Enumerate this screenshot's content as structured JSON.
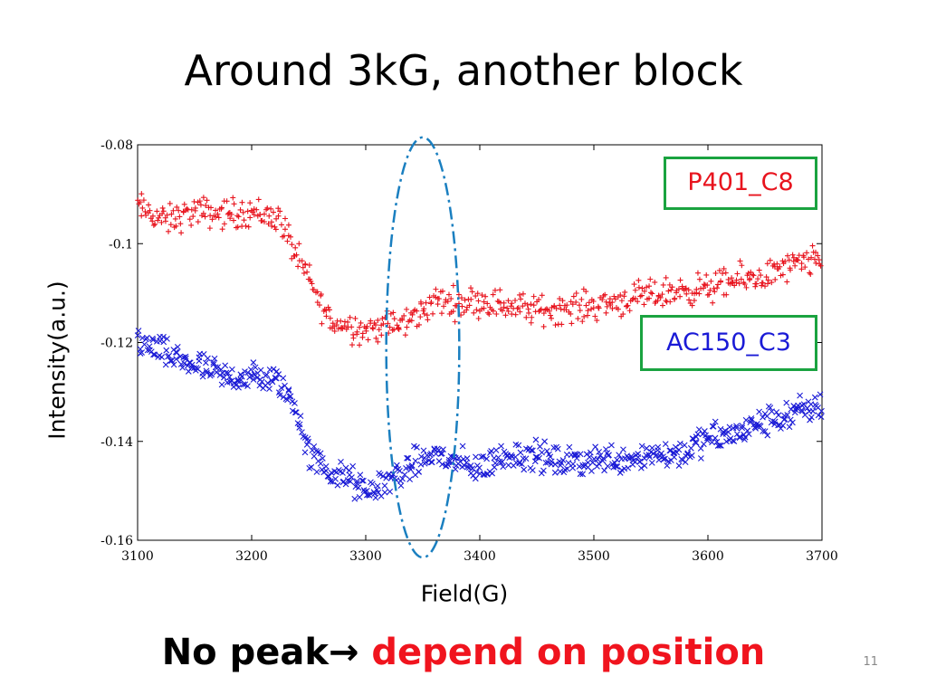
{
  "slide": {
    "title": "Around 3kG, another block",
    "footer_left": "No peak→",
    "footer_right": "depend on position",
    "page_number": "11"
  },
  "chart_data": {
    "type": "scatter",
    "xlabel": "Field(G)",
    "ylabel": "Intensity(a.u.)",
    "xlim": [
      3100,
      3700
    ],
    "ylim": [
      -0.16,
      -0.08
    ],
    "xticks": [
      "3100",
      "3200",
      "3300",
      "3400",
      "3500",
      "3600",
      "3700"
    ],
    "yticks": [
      "-0.08",
      "-0.1",
      "-0.12",
      "-0.14",
      "-0.16"
    ],
    "grid": false,
    "series": [
      {
        "name": "P401_C8",
        "marker": "+",
        "color": "#e8141e",
        "x": [
          3100,
          3125,
          3150,
          3175,
          3200,
          3225,
          3240,
          3250,
          3260,
          3270,
          3285,
          3300,
          3315,
          3330,
          3345,
          3360,
          3380,
          3400,
          3425,
          3450,
          3475,
          3500,
          3525,
          3550,
          3575,
          3600,
          3625,
          3650,
          3675,
          3700
        ],
        "y": [
          -0.0925,
          -0.0955,
          -0.0935,
          -0.094,
          -0.0935,
          -0.095,
          -0.103,
          -0.107,
          -0.112,
          -0.116,
          -0.1165,
          -0.1175,
          -0.1165,
          -0.1165,
          -0.1145,
          -0.1115,
          -0.112,
          -0.1115,
          -0.1125,
          -0.1135,
          -0.113,
          -0.1125,
          -0.1115,
          -0.1105,
          -0.1095,
          -0.109,
          -0.1075,
          -0.1065,
          -0.1045,
          -0.1035
        ]
      },
      {
        "name": "AC150_C3",
        "marker": "x",
        "color": "#1a1ad6",
        "x": [
          3100,
          3125,
          3150,
          3175,
          3200,
          3225,
          3240,
          3250,
          3260,
          3270,
          3285,
          3300,
          3315,
          3330,
          3345,
          3360,
          3380,
          3400,
          3425,
          3450,
          3475,
          3500,
          3525,
          3550,
          3575,
          3600,
          3625,
          3650,
          3675,
          3700
        ],
        "y": [
          -0.1195,
          -0.1225,
          -0.1245,
          -0.127,
          -0.127,
          -0.128,
          -0.134,
          -0.1425,
          -0.1445,
          -0.1465,
          -0.1475,
          -0.1505,
          -0.1485,
          -0.1465,
          -0.1445,
          -0.1425,
          -0.1445,
          -0.1455,
          -0.1425,
          -0.143,
          -0.1445,
          -0.1435,
          -0.1435,
          -0.1425,
          -0.1425,
          -0.1395,
          -0.1385,
          -0.136,
          -0.1345,
          -0.1325
        ]
      }
    ],
    "annotations": [
      {
        "type": "dash-dot-ellipse",
        "color": "#1a7fc0",
        "center_x": 3350,
        "center_y": -0.121,
        "x_halfwidth": 32,
        "y_halfheight": 0.0425
      }
    ]
  }
}
